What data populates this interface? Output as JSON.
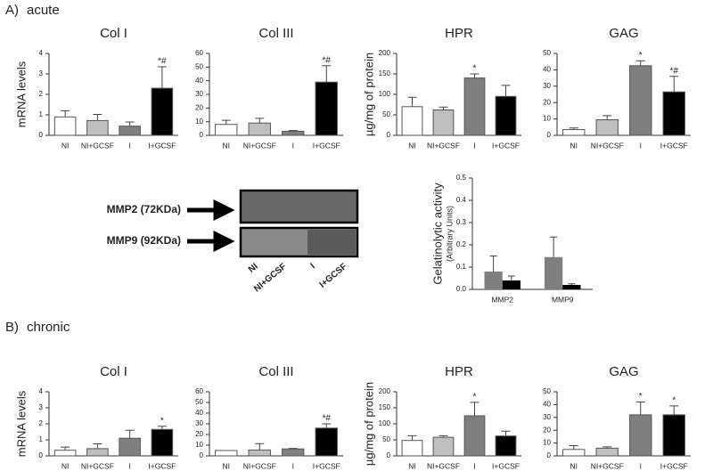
{
  "sections": [
    {
      "label": "A)",
      "name": "acute"
    },
    {
      "label": "B)",
      "name": "chronic"
    }
  ],
  "gel": {
    "bands": [
      "MMP2 (72KDa)",
      "MMP9 (92KDa)"
    ],
    "lanes": [
      "NI",
      "NI+GCSF",
      "I",
      "I+GCSF"
    ]
  },
  "chart_data": [
    {
      "type": "bar",
      "title": "Col I",
      "ylabel": "mRNA levels",
      "categories": [
        "NI",
        "NI+GCSF",
        "I",
        "I+GCSF"
      ],
      "values": [
        0.9,
        0.72,
        0.45,
        2.3
      ],
      "errors": [
        0.3,
        0.3,
        0.2,
        1.05
      ],
      "annotations": [
        null,
        null,
        null,
        "*#"
      ],
      "colors": [
        "#ffffff",
        "#bfbfbf",
        "#7f7f7f",
        "#000000"
      ],
      "ylim": [
        0,
        4
      ],
      "yticks": [
        0,
        1,
        2,
        3,
        4
      ]
    },
    {
      "type": "bar",
      "title": "Col III",
      "categories": [
        "NI",
        "NI+GCSF",
        "I",
        "I+GCSF"
      ],
      "values": [
        8,
        9,
        3,
        39
      ],
      "errors": [
        3,
        3.5,
        0.5,
        12
      ],
      "annotations": [
        null,
        null,
        null,
        "*#"
      ],
      "colors": [
        "#ffffff",
        "#bfbfbf",
        "#7f7f7f",
        "#000000"
      ],
      "ylim": [
        0,
        60
      ],
      "yticks": [
        0,
        10,
        20,
        30,
        40,
        50,
        60
      ]
    },
    {
      "type": "bar",
      "title": "HPR",
      "ylabel": "µg/mg of protein",
      "categories": [
        "NI",
        "NI+GCSF",
        "I",
        "I+GCSF"
      ],
      "values": [
        70,
        62,
        140,
        95
      ],
      "errors": [
        23,
        7,
        10,
        27
      ],
      "annotations": [
        null,
        null,
        "*",
        null
      ],
      "colors": [
        "#ffffff",
        "#bfbfbf",
        "#7f7f7f",
        "#000000"
      ],
      "ylim": [
        0,
        200
      ],
      "yticks": [
        0,
        50,
        100,
        150,
        200
      ]
    },
    {
      "type": "bar",
      "title": "GAG",
      "categories": [
        "NI",
        "NI+GCSF",
        "I",
        "I+GCSF"
      ],
      "values": [
        3.5,
        9.5,
        42.5,
        26.5
      ],
      "errors": [
        1,
        2.5,
        3,
        9.5
      ],
      "annotations": [
        null,
        null,
        "*",
        "*#"
      ],
      "colors": [
        "#ffffff",
        "#bfbfbf",
        "#7f7f7f",
        "#000000"
      ],
      "ylim": [
        0,
        50
      ],
      "yticks": [
        0,
        10,
        20,
        30,
        40,
        50
      ]
    },
    {
      "type": "grouped_bar",
      "ylabel": "Gelatinolytic activity",
      "ylabel_sub": "(Arbitrary Units)",
      "categories": [
        "MMP2",
        "MMP9"
      ],
      "series": [
        {
          "color": "#7f7f7f",
          "values": [
            0.08,
            0.145
          ],
          "errors": [
            0.07,
            0.09
          ]
        },
        {
          "color": "#000000",
          "values": [
            0.04,
            0.02
          ],
          "errors": [
            0.02,
            0.005
          ]
        }
      ],
      "ylim": [
        0,
        0.5
      ],
      "yticks": [
        {
          "value": 0,
          "label": "0.0"
        },
        0.1,
        0.2,
        0.3,
        0.4,
        0.5
      ]
    },
    {
      "type": "bar",
      "title": "Col I",
      "ylabel": "mRNA levels",
      "categories": [
        "NI",
        "NI+GCSF",
        "I",
        "I+GCSF"
      ],
      "values": [
        0.35,
        0.45,
        1.1,
        1.65
      ],
      "errors": [
        0.2,
        0.3,
        0.5,
        0.2
      ],
      "annotations": [
        null,
        null,
        null,
        "*"
      ],
      "colors": [
        "#ffffff",
        "#bfbfbf",
        "#7f7f7f",
        "#000000"
      ],
      "ylim": [
        0,
        4
      ],
      "yticks": [
        0,
        1,
        2,
        3,
        4
      ]
    },
    {
      "type": "bar",
      "title": "Col III",
      "categories": [
        "NI",
        "NI+GCSF",
        "I",
        "I+GCSF"
      ],
      "values": [
        5,
        5.5,
        6.5,
        26
      ],
      "errors": [
        0,
        6,
        0.5,
        4
      ],
      "annotations": [
        null,
        null,
        null,
        "*#"
      ],
      "colors": [
        "#ffffff",
        "#bfbfbf",
        "#7f7f7f",
        "#000000"
      ],
      "ylim": [
        0,
        60
      ],
      "yticks": [
        0,
        10,
        20,
        30,
        40,
        50,
        60
      ]
    },
    {
      "type": "bar",
      "title": "HPR",
      "ylabel": "µg/mg of protein",
      "categories": [
        "NI",
        "NI+GCSF",
        "I",
        "I+GCSF"
      ],
      "values": [
        48,
        58,
        125,
        62
      ],
      "errors": [
        15,
        5,
        42,
        15
      ],
      "annotations": [
        null,
        null,
        "*",
        null
      ],
      "colors": [
        "#ffffff",
        "#bfbfbf",
        "#7f7f7f",
        "#000000"
      ],
      "ylim": [
        0,
        200
      ],
      "yticks": [
        0,
        50,
        100,
        150,
        200
      ]
    },
    {
      "type": "bar",
      "title": "GAG",
      "categories": [
        "NI",
        "NI+GCSF",
        "I",
        "I+GCSF"
      ],
      "values": [
        5,
        6,
        32,
        32
      ],
      "errors": [
        3,
        1,
        10,
        7
      ],
      "annotations": [
        null,
        null,
        "*",
        "*"
      ],
      "colors": [
        "#ffffff",
        "#bfbfbf",
        "#7f7f7f",
        "#000000"
      ],
      "ylim": [
        0,
        50
      ],
      "yticks": [
        0,
        10,
        20,
        30,
        40,
        50
      ]
    }
  ]
}
